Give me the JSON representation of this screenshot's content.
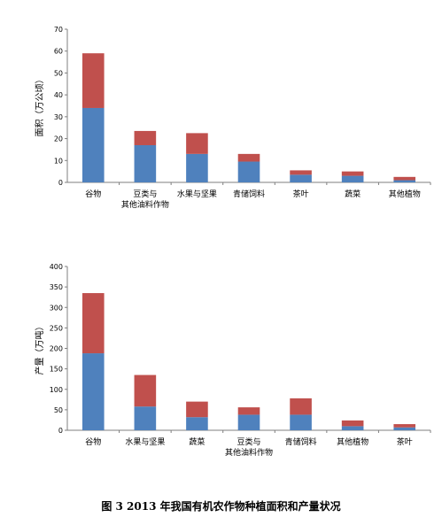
{
  "chart_data": [
    {
      "type": "bar",
      "stacked": true,
      "ylabel": "面积（万公顷）",
      "ylim": [
        0,
        70
      ],
      "yticks": [
        0,
        10,
        20,
        30,
        40,
        50,
        60,
        70
      ],
      "categories": [
        "谷物",
        "豆类与\n其他油料作物",
        "水果与坚果",
        "青储饲料",
        "茶叶",
        "蔬菜",
        "其他植物"
      ],
      "series": [
        {
          "color": "#4f81bd",
          "values": [
            34,
            17,
            13,
            9.5,
            3.5,
            3,
            1
          ]
        },
        {
          "color": "#c0504d",
          "values": [
            25,
            6.5,
            9.5,
            3.5,
            2,
            2,
            1.5
          ]
        }
      ]
    },
    {
      "type": "bar",
      "stacked": true,
      "ylabel": "产量（万吨）",
      "ylim": [
        0,
        400
      ],
      "yticks": [
        0,
        50,
        100,
        150,
        200,
        250,
        300,
        350,
        400
      ],
      "categories": [
        "谷物",
        "水果与坚果",
        "蔬菜",
        "豆类与\n其他油料作物",
        "青储饲料",
        "其他植物",
        "茶叶"
      ],
      "series": [
        {
          "color": "#4f81bd",
          "values": [
            188,
            58,
            32,
            38,
            38,
            10,
            7
          ]
        },
        {
          "color": "#c0504d",
          "values": [
            147,
            77,
            38,
            18,
            40,
            14,
            8
          ]
        }
      ]
    }
  ],
  "caption": "图 3   2013 年我国有机农作物种植面积和产量状况"
}
